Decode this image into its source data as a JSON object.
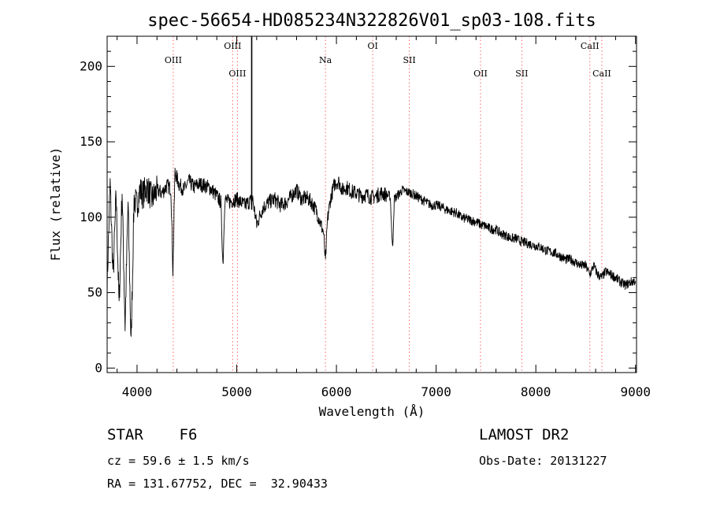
{
  "chart_data": {
    "type": "line",
    "title": "spec-56654-HD085234N322826V01_sp03-108.fits",
    "xlabel": "Wavelength (Å)",
    "ylabel": "Flux (relative)",
    "xlim": [
      3700,
      9010
    ],
    "ylim": [
      -3,
      220
    ],
    "xticks": [
      4000,
      5000,
      6000,
      7000,
      8000,
      9000
    ],
    "yticks": [
      0,
      50,
      100,
      150,
      200
    ],
    "grid": false,
    "line_color": "#000000",
    "marker_color": "#ff6666",
    "series": [
      {
        "x": [
          3700,
          3730,
          3760,
          3790,
          3820,
          3850,
          3880,
          3910,
          3940,
          3970,
          4000,
          4030,
          4060,
          4100,
          4150,
          4200,
          4250,
          4300,
          4340,
          4360,
          4380,
          4420,
          4470,
          4520,
          4570,
          4620,
          4680,
          4740,
          4800,
          4840,
          4862,
          4880,
          4920,
          4960,
          5000,
          5040,
          5080,
          5120,
          5160,
          5200,
          5260,
          5320,
          5380,
          5440,
          5500,
          5560,
          5600,
          5650,
          5700,
          5750,
          5800,
          5840,
          5870,
          5890,
          5910,
          5940,
          5980,
          6020,
          6060,
          6100,
          6150,
          6200,
          6250,
          6300,
          6350,
          6400,
          6450,
          6500,
          6540,
          6563,
          6580,
          6620,
          6660,
          6700,
          6750,
          6800,
          6850,
          6900,
          6950,
          7000,
          7050,
          7100,
          7150,
          7200,
          7250,
          7300,
          7350,
          7400,
          7450,
          7500,
          7550,
          7600,
          7650,
          7700,
          7750,
          7800,
          7850,
          7900,
          7950,
          8000,
          8050,
          8100,
          8150,
          8200,
          8250,
          8300,
          8350,
          8400,
          8450,
          8498,
          8542,
          8580,
          8620,
          8662,
          8700,
          8750,
          8800,
          8850,
          8900,
          8950,
          9000
        ],
        "values": [
          55,
          122,
          60,
          115,
          40,
          118,
          28,
          110,
          15,
          112,
          108,
          118,
          115,
          120,
          112,
          118,
          116,
          121,
          119,
          64,
          130,
          122,
          118,
          124,
          120,
          122,
          121,
          119,
          114,
          110,
          68,
          112,
          110,
          111,
          112,
          110,
          108,
          110,
          112,
          95,
          106,
          110,
          112,
          108,
          110,
          115,
          118,
          112,
          113,
          110,
          104,
          96,
          90,
          70,
          98,
          112,
          122,
          124,
          118,
          120,
          117,
          116,
          114,
          115,
          113,
          114,
          116,
          115,
          114,
          78,
          112,
          115,
          118,
          117,
          116,
          114,
          112,
          110,
          108,
          108,
          107,
          105,
          104,
          103,
          100,
          99,
          98,
          97,
          95,
          94,
          92,
          92,
          89,
          88,
          86,
          86,
          84,
          83,
          82,
          81,
          80,
          78,
          77,
          76,
          74,
          72,
          72,
          70,
          68,
          68,
          62,
          68,
          62,
          60,
          64,
          62,
          60,
          57,
          55,
          57,
          58
        ]
      }
    ],
    "line_markers": [
      {
        "label": "OIII",
        "x": 4363,
        "row": 1
      },
      {
        "label": "OIII",
        "x": 4959,
        "row": 0
      },
      {
        "label": "OIII",
        "x": 5007,
        "row": 2
      },
      {
        "label": "Na",
        "x": 5890,
        "row": 1
      },
      {
        "label": "OI",
        "x": 6364,
        "row": 0
      },
      {
        "label": "SII",
        "x": 6731,
        "row": 1
      },
      {
        "label": "OII",
        "x": 7445,
        "row": 2
      },
      {
        "label": "SII",
        "x": 7859,
        "row": 2
      },
      {
        "label": "CaII",
        "x": 8542,
        "row": 0
      },
      {
        "label": "CaII",
        "x": 8662,
        "row": 2
      }
    ],
    "spike_x": 5150
  },
  "info": {
    "star_class": "STAR    F6",
    "cz_line": "cz = 59.6 ± 1.5 km/s",
    "radec_line": "RA = 131.67752, DEC =  32.90433",
    "survey": "LAMOST DR2",
    "obs_date": "Obs-Date: 20131227"
  }
}
